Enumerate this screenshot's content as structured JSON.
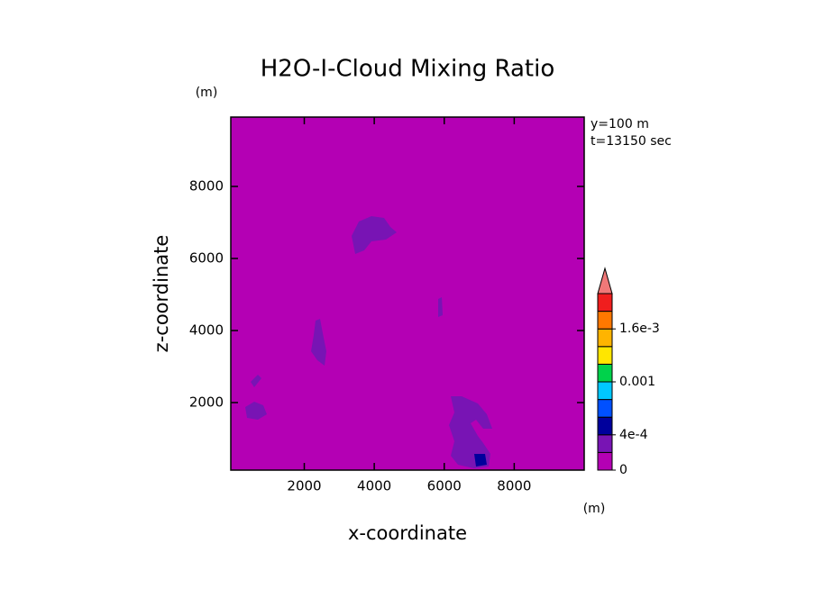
{
  "chart_data": {
    "type": "contour",
    "title": "H2O-I-Cloud Mixing Ratio",
    "x_label": "x-coordinate",
    "y_label": "z-coordinate",
    "x_unit": "(m)",
    "y_unit": "(m)",
    "annotations": [
      "y=100 m",
      "t=13150 sec"
    ],
    "xlim": [
      -100,
      10000
    ],
    "ylim": [
      125,
      9925
    ],
    "xticks": [
      2000,
      4000,
      6000,
      8000
    ],
    "yticks": [
      2000,
      4000,
      6000,
      8000
    ],
    "levels": [
      0,
      0.0002,
      0.0004,
      0.0006,
      0.0008,
      0.001,
      0.0012,
      0.0014,
      0.0016,
      0.0018,
      0.002
    ],
    "colors": [
      "#b400b4",
      "#7814b4",
      "#00009c",
      "#0050ff",
      "#00c8ff",
      "#00d24b",
      "#ffe600",
      "#ffb400",
      "#ff7800",
      "#f01e1e"
    ],
    "extend_color": "#f07878",
    "colorbar_ticks": [
      0,
      {
        "value": 0.0004,
        "label": "4e-4"
      },
      0.001,
      {
        "value": 0.0016,
        "label": "1.6e-3"
      }
    ]
  }
}
